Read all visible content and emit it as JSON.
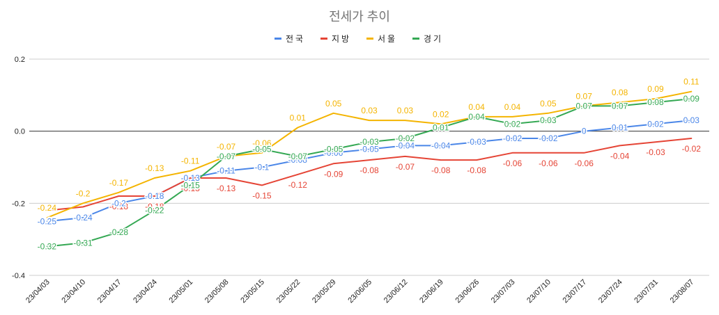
{
  "chart_data": {
    "type": "line",
    "title": "전세가 추이",
    "xlabel": "",
    "ylabel": "",
    "ylim": [
      -0.4,
      0.2
    ],
    "yticks": [
      {
        "value": 0.2,
        "label": "0.2"
      },
      {
        "value": 0.0,
        "label": "0.0"
      },
      {
        "value": -0.2,
        "label": "-0.2"
      },
      {
        "value": -0.4,
        "label": "-0.4"
      }
    ],
    "legend_position": "top",
    "categories": [
      "23/04/03",
      "23/04/10",
      "23/04/17",
      "23/04/24",
      "23/05/01",
      "23/05/08",
      "23/05/15",
      "23/05/22",
      "23/05/29",
      "23/06/05",
      "23/06/12",
      "23/06/19",
      "23/06/26",
      "23/07/03",
      "23/07/10",
      "23/07/17",
      "23/07/24",
      "23/07/31",
      "23/08/07"
    ],
    "series": [
      {
        "name": "전국",
        "color": "#4a86e8",
        "values": [
          -0.25,
          -0.24,
          -0.2,
          -0.18,
          -0.13,
          -0.11,
          -0.1,
          -0.08,
          -0.06,
          -0.05,
          -0.04,
          -0.04,
          -0.03,
          -0.02,
          -0.02,
          0,
          0.01,
          0.02,
          0.03
        ],
        "labels": [
          "-0.25",
          "-0.24",
          "-0.2",
          "-0.18",
          "-0.13",
          "-0.11",
          "-0.1",
          "-0.08",
          "-0.06",
          "-0.05",
          "-0.04",
          "-0.04",
          "-0.03",
          "-0.02",
          "-0.02",
          "0",
          "0.01",
          "0.02",
          "0.03"
        ]
      },
      {
        "name": "지방",
        "color": "#e54435",
        "values": [
          -0.22,
          -0.21,
          -0.18,
          -0.18,
          -0.13,
          -0.13,
          -0.15,
          -0.12,
          -0.09,
          -0.08,
          -0.07,
          -0.08,
          -0.08,
          -0.06,
          -0.06,
          -0.06,
          -0.04,
          -0.03,
          -0.02
        ],
        "labels": [
          "-0.22",
          "-0.21",
          "-0.18",
          "-0.18",
          "-0.13",
          "-0.13",
          "-0.15",
          "-0.12",
          "-0.09",
          "-0.08",
          "-0.07",
          "-0.08",
          "-0.08",
          "-0.06",
          "-0.06",
          "-0.06",
          "-0.04",
          "-0.03",
          "-0.02"
        ]
      },
      {
        "name": "서울",
        "color": "#f4b400",
        "values": [
          -0.24,
          -0.2,
          -0.17,
          -0.13,
          -0.11,
          -0.07,
          -0.06,
          0.01,
          0.05,
          0.03,
          0.03,
          0.02,
          0.04,
          0.04,
          0.05,
          0.07,
          0.08,
          0.09,
          0.11
        ],
        "labels": [
          "-0.24",
          "-0.2",
          "-0.17",
          "-0.13",
          "-0.11",
          "-0.07",
          "-0.06",
          "0.01",
          "0.05",
          "0.03",
          "0.03",
          "0.02",
          "0.04",
          "0.04",
          "0.05",
          "0.07",
          "0.08",
          "0.09",
          "0.11"
        ]
      },
      {
        "name": "경기",
        "color": "#34a853",
        "values": [
          -0.32,
          -0.31,
          -0.28,
          -0.22,
          -0.15,
          -0.07,
          -0.05,
          -0.07,
          -0.05,
          -0.03,
          -0.02,
          0.01,
          0.04,
          0.02,
          0.03,
          0.07,
          0.07,
          0.08,
          0.09
        ],
        "labels": [
          "-0.32",
          "-0.31",
          "-0.28",
          "-0.22",
          "-0.15",
          "-0.07",
          "-0.05",
          "-0.07",
          "-0.05",
          "-0.03",
          "-0.02",
          "0.01",
          "0.04",
          "0.02",
          "0.03",
          "0.07",
          "0.07",
          "0.08",
          "0.09"
        ]
      }
    ]
  }
}
